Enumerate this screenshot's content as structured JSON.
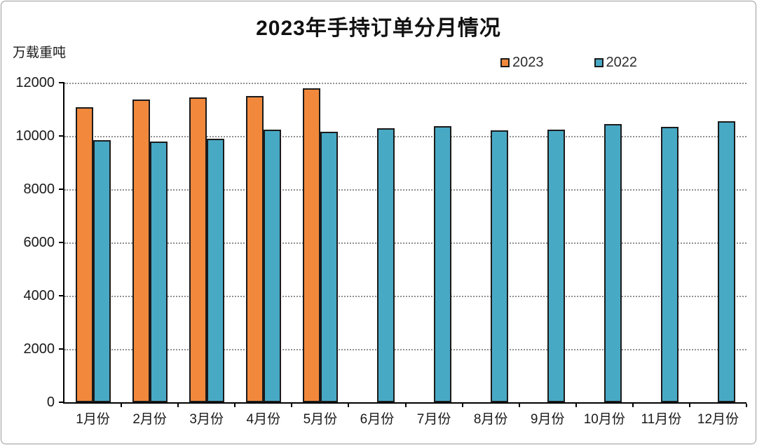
{
  "chart": {
    "title": "2023年手持订单分月情况",
    "unit_label": "万载重吨",
    "legend": [
      {
        "label": "2023",
        "color": "#F1883C"
      },
      {
        "label": "2022",
        "color": "#48A9C5"
      }
    ],
    "bar_border_color": "#1b1b1b"
  },
  "chart_data": {
    "type": "bar",
    "title": "2023年手持订单分月情况",
    "xlabel": "",
    "ylabel": "万载重吨",
    "categories": [
      "1月份",
      "2月份",
      "3月份",
      "4月份",
      "5月份",
      "6月份",
      "7月份",
      "8月份",
      "9月份",
      "10月份",
      "11月份",
      "12月份"
    ],
    "series": [
      {
        "name": "2023",
        "color": "#F1883C",
        "values": [
          11080,
          11360,
          11450,
          11490,
          11790,
          null,
          null,
          null,
          null,
          null,
          null,
          null
        ]
      },
      {
        "name": "2022",
        "color": "#48A9C5",
        "values": [
          9850,
          9800,
          9900,
          10240,
          10170,
          10280,
          10370,
          10200,
          10240,
          10450,
          10350,
          10550
        ]
      }
    ],
    "ylim": [
      0,
      12000
    ],
    "yticks": [
      0,
      2000,
      4000,
      6000,
      8000,
      10000,
      12000
    ],
    "grid": true,
    "gridline_style": "dotted",
    "legend_position": "top-right"
  }
}
